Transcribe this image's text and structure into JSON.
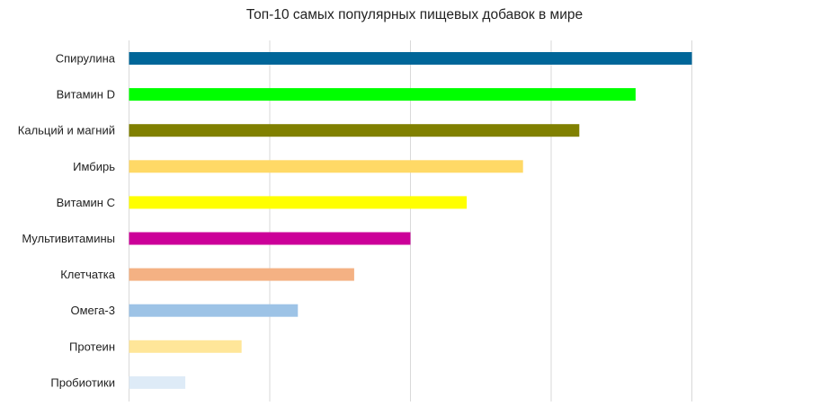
{
  "chart_data": {
    "type": "bar",
    "orientation": "horizontal",
    "title": "Топ-10 самых популярных пищевых добавок в мире",
    "xlabel": "",
    "ylabel": "",
    "xlim": [
      0,
      10
    ],
    "x_gridlines": [
      0,
      2.5,
      5,
      7.5,
      10
    ],
    "grid": true,
    "x_tick_labels_shown": false,
    "categories": [
      "Спирулина",
      "Витамин D",
      "Кальций и магний",
      "Имбирь",
      "Витамин C",
      "Мультивитамины",
      "Клетчатка",
      "Омега-3",
      "Протеин",
      "Пробиотики"
    ],
    "values": [
      10,
      9,
      8,
      7,
      6,
      5,
      4,
      3,
      2,
      1
    ],
    "colors": [
      "#006699",
      "#00ff00",
      "#808000",
      "#ffd966",
      "#ffff00",
      "#cc0099",
      "#f4b183",
      "#9dc3e6",
      "#ffe699",
      "#deebf7"
    ]
  }
}
